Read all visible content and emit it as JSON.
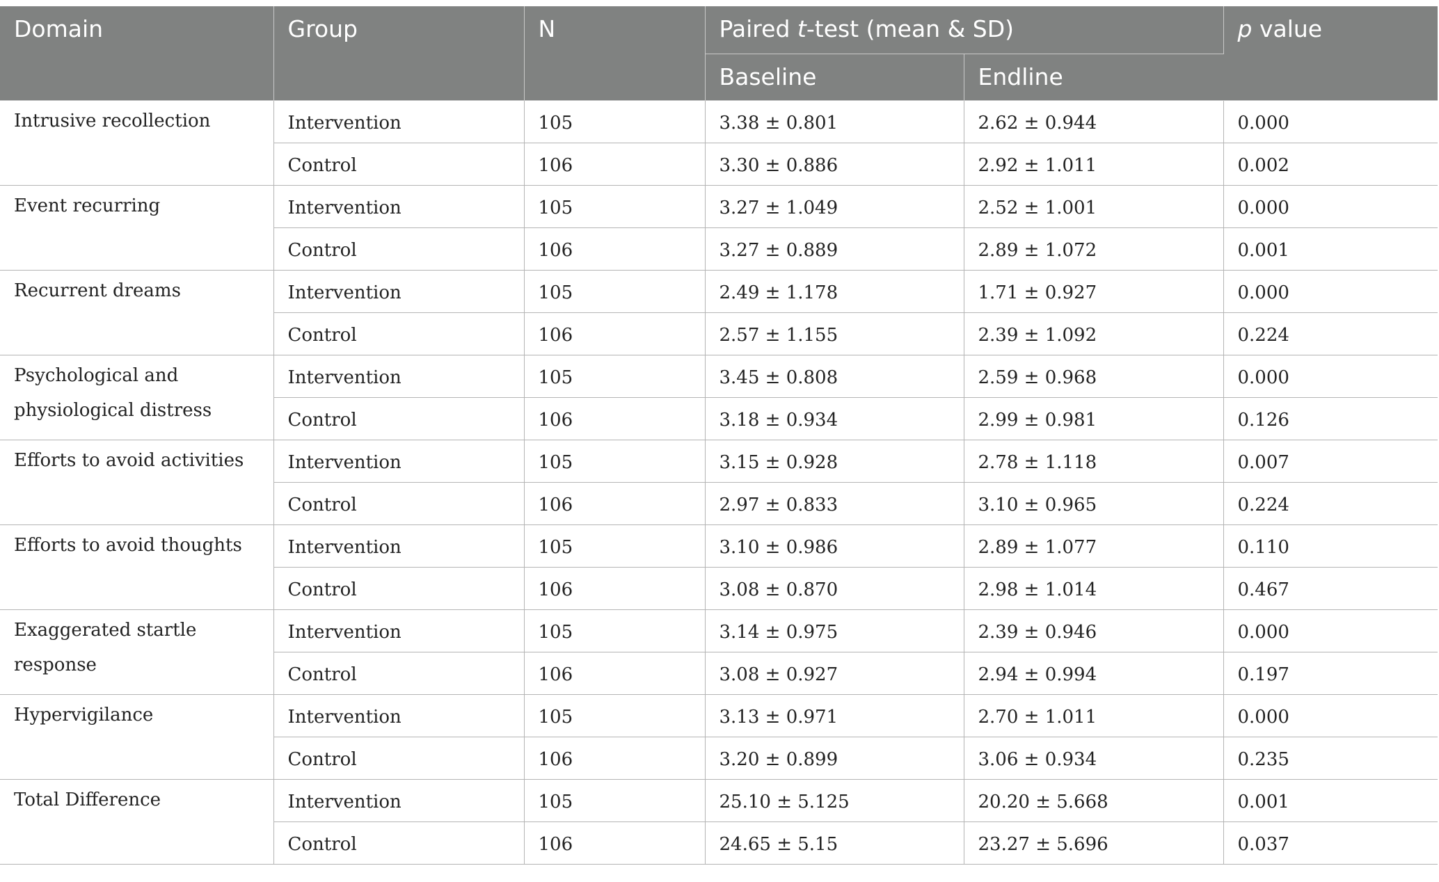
{
  "table": {
    "headers": {
      "domain": "Domain",
      "group": "Group",
      "n": "N",
      "paired_prefix": "Paired ",
      "paired_t": "t",
      "paired_suffix": "-test (mean & SD)",
      "baseline": "Baseline",
      "endline": "Endline",
      "p_italic": "p",
      "p_suffix": " value"
    },
    "domains": [
      {
        "name": "Intrusive recollection",
        "rows": [
          {
            "group": "Intervention",
            "n": "105",
            "baseline": "3.38 ± 0.801",
            "endline": "2.62 ± 0.944",
            "p": "0.000"
          },
          {
            "group": "Control",
            "n": "106",
            "baseline": "3.30 ± 0.886",
            "endline": "2.92 ± 1.011",
            "p": "0.002"
          }
        ]
      },
      {
        "name": "Event recurring",
        "rows": [
          {
            "group": "Intervention",
            "n": "105",
            "baseline": "3.27 ± 1.049",
            "endline": "2.52 ± 1.001",
            "p": "0.000"
          },
          {
            "group": "Control",
            "n": "106",
            "baseline": "3.27 ± 0.889",
            "endline": "2.89 ± 1.072",
            "p": "0.001"
          }
        ]
      },
      {
        "name": "Recurrent dreams",
        "rows": [
          {
            "group": "Intervention",
            "n": "105",
            "baseline": "2.49 ± 1.178",
            "endline": "1.71 ± 0.927",
            "p": "0.000"
          },
          {
            "group": "Control",
            "n": "106",
            "baseline": "2.57 ± 1.155",
            "endline": "2.39 ± 1.092",
            "p": "0.224"
          }
        ]
      },
      {
        "name": "Psychological and physiological distress",
        "rows": [
          {
            "group": "Intervention",
            "n": "105",
            "baseline": "3.45 ± 0.808",
            "endline": "2.59 ± 0.968",
            "p": "0.000"
          },
          {
            "group": "Control",
            "n": "106",
            "baseline": "3.18 ± 0.934",
            "endline": "2.99 ± 0.981",
            "p": "0.126"
          }
        ]
      },
      {
        "name": "Efforts to avoid activities",
        "rows": [
          {
            "group": "Intervention",
            "n": "105",
            "baseline": "3.15 ± 0.928",
            "endline": "2.78 ± 1.118",
            "p": "0.007"
          },
          {
            "group": "Control",
            "n": "106",
            "baseline": "2.97 ± 0.833",
            "endline": "3.10 ± 0.965",
            "p": "0.224"
          }
        ]
      },
      {
        "name": "Efforts to avoid thoughts",
        "rows": [
          {
            "group": "Intervention",
            "n": "105",
            "baseline": "3.10 ± 0.986",
            "endline": "2.89 ± 1.077",
            "p": "0.110"
          },
          {
            "group": "Control",
            "n": "106",
            "baseline": "3.08 ± 0.870",
            "endline": "2.98 ± 1.014",
            "p": "0.467"
          }
        ]
      },
      {
        "name": "Exaggerated startle response",
        "rows": [
          {
            "group": "Intervention",
            "n": "105",
            "baseline": "3.14 ± 0.975",
            "endline": "2.39 ± 0.946",
            "p": "0.000"
          },
          {
            "group": "Control",
            "n": "106",
            "baseline": "3.08 ± 0.927",
            "endline": "2.94 ± 0.994",
            "p": "0.197"
          }
        ]
      },
      {
        "name": "Hypervigilance",
        "rows": [
          {
            "group": "Intervention",
            "n": "105",
            "baseline": "3.13 ± 0.971",
            "endline": "2.70 ± 1.011",
            "p": "0.000"
          },
          {
            "group": "Control",
            "n": "106",
            "baseline": "3.20 ± 0.899",
            "endline": "3.06 ± 0.934",
            "p": "0.235"
          }
        ]
      },
      {
        "name": "Total Difference",
        "rows": [
          {
            "group": "Intervention",
            "n": "105",
            "baseline": "25.10 ± 5.125",
            "endline": "20.20 ± 5.668",
            "p": "0.001"
          },
          {
            "group": "Control",
            "n": "106",
            "baseline": "24.65 ± 5.15",
            "endline": "23.27 ± 5.696",
            "p": "0.037"
          }
        ]
      }
    ]
  },
  "colors": {
    "header_bg": "#808281",
    "header_text": "#ffffff",
    "body_text": "#222222",
    "grid": "#b4b4b4"
  }
}
